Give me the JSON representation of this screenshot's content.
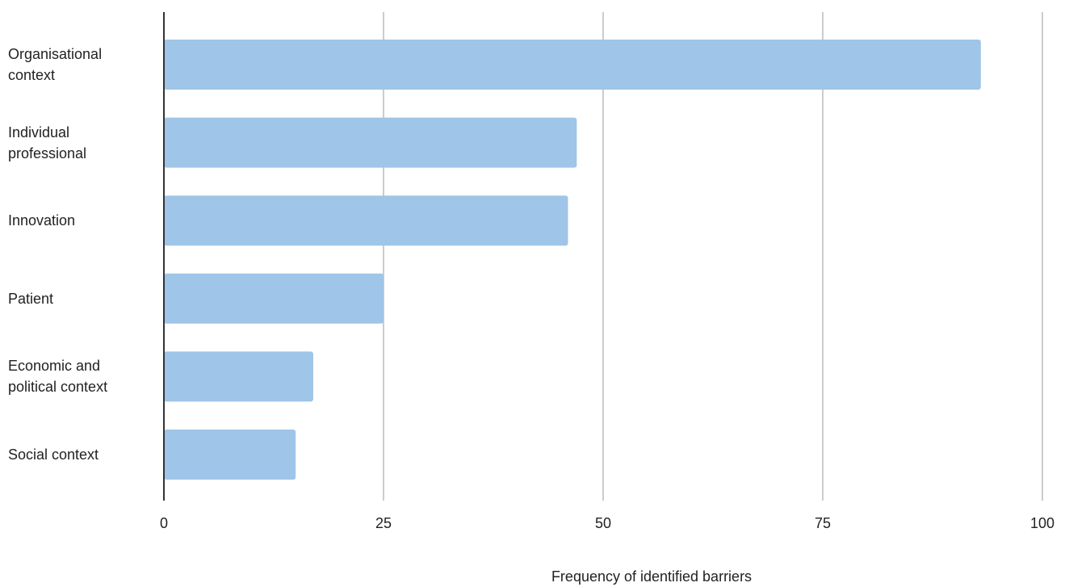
{
  "chart_data": {
    "type": "bar",
    "orientation": "horizontal",
    "categories": [
      "Organisational\ncontext",
      "Individual\nprofessional",
      "Innovation",
      "Patient",
      "Economic and\npolitical context",
      "Social context"
    ],
    "values": [
      93,
      47,
      46,
      25,
      17,
      15
    ],
    "xlabel": "Frequency of identified barriers",
    "ylabel": "",
    "xlim": [
      0,
      100
    ],
    "ticks": [
      "0",
      "25",
      "50",
      "75",
      "100"
    ],
    "grid": true,
    "bar_color": "#9fc5e8",
    "grid_color": "#cccccc",
    "axis_color": "#333333"
  }
}
